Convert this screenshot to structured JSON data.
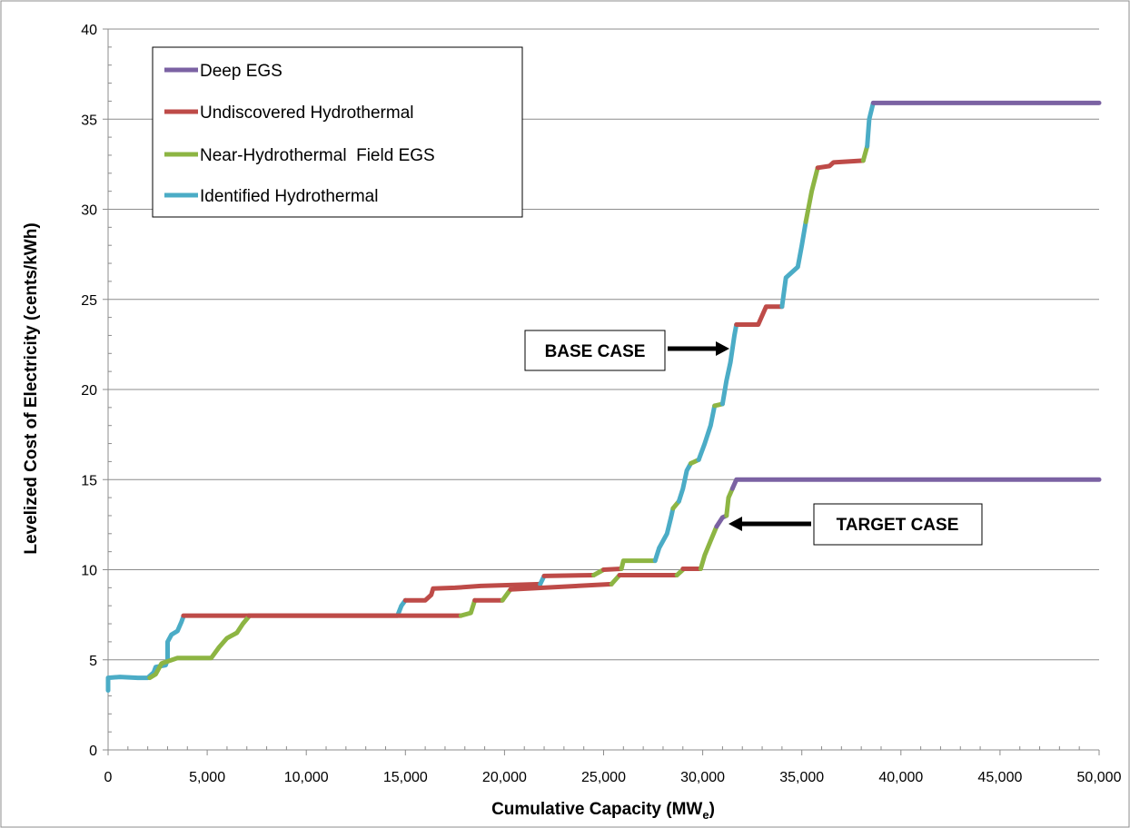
{
  "chart_data": {
    "type": "line",
    "title": "",
    "xlabel": "Cumulative Capacity (MW",
    "xlabel_subscript": "e",
    "xlabel_suffix": ")",
    "ylabel": "Levelized Cost of Electricity (cents/kWh)",
    "xlim": [
      0,
      50000
    ],
    "ylim": [
      0,
      40
    ],
    "x_ticks": [
      0,
      5000,
      10000,
      15000,
      20000,
      25000,
      30000,
      35000,
      40000,
      45000,
      50000
    ],
    "x_tick_labels": [
      "0",
      "5,000",
      "10,000",
      "15,000",
      "20,000",
      "25,000",
      "30,000",
      "35,000",
      "40,000",
      "45,000",
      "50,000"
    ],
    "y_ticks": [
      0,
      5,
      10,
      15,
      20,
      25,
      30,
      35,
      40
    ],
    "y_tick_labels": [
      "0",
      "5",
      "10",
      "15",
      "20",
      "25",
      "30",
      "35",
      "40"
    ],
    "grid": "horizontal major gridlines",
    "legend_position": "top-left",
    "legend": [
      {
        "name": "Deep EGS",
        "color": "#7b62a3"
      },
      {
        "name": "Undiscovered Hydrothermal",
        "color": "#be4b48"
      },
      {
        "name": "Near-Hydrothermal  Field EGS",
        "color": "#8db543"
      },
      {
        "name": "Identified Hydrothermal",
        "color": "#4bacc6"
      }
    ],
    "annotations": [
      {
        "text": "BASE CASE",
        "points_to": [
          31500,
          22.2
        ]
      },
      {
        "text": "TARGET CASE",
        "points_to": [
          30900,
          12.2
        ]
      }
    ],
    "series": [
      {
        "name": "Base case",
        "segments": [
          {
            "color": "#4bacc6",
            "points": [
              [
                0,
                3.3
              ],
              [
                0,
                4.0
              ],
              [
                600,
                4.05
              ],
              [
                1500,
                4.0
              ],
              [
                2000,
                4.0
              ],
              [
                2300,
                4.3
              ],
              [
                2400,
                4.6
              ],
              [
                2900,
                4.7
              ],
              [
                3000,
                5.0
              ],
              [
                3000,
                6.0
              ],
              [
                3200,
                6.4
              ],
              [
                3500,
                6.6
              ],
              [
                3700,
                7.1
              ],
              [
                3800,
                7.4
              ]
            ]
          },
          {
            "color": "#be4b48",
            "points": [
              [
                3800,
                7.45
              ],
              [
                14600,
                7.45
              ]
            ]
          },
          {
            "color": "#4bacc6",
            "points": [
              [
                14600,
                7.45
              ],
              [
                14800,
                8.0
              ],
              [
                15000,
                8.3
              ]
            ]
          },
          {
            "color": "#be4b48",
            "points": [
              [
                15000,
                8.3
              ],
              [
                16000,
                8.3
              ],
              [
                16300,
                8.6
              ],
              [
                16400,
                8.95
              ],
              [
                17500,
                9.0
              ],
              [
                18800,
                9.1
              ],
              [
                21800,
                9.2
              ]
            ]
          },
          {
            "color": "#4bacc6",
            "points": [
              [
                21800,
                9.2
              ],
              [
                22000,
                9.65
              ]
            ]
          },
          {
            "color": "#be4b48",
            "points": [
              [
                22000,
                9.65
              ],
              [
                24500,
                9.7
              ]
            ]
          },
          {
            "color": "#8db543",
            "points": [
              [
                24500,
                9.7
              ],
              [
                25000,
                10.0
              ]
            ]
          },
          {
            "color": "#be4b48",
            "points": [
              [
                25000,
                10.0
              ],
              [
                25900,
                10.05
              ]
            ]
          },
          {
            "color": "#8db543",
            "points": [
              [
                25900,
                10.05
              ],
              [
                26000,
                10.5
              ],
              [
                27600,
                10.5
              ]
            ]
          },
          {
            "color": "#4bacc6",
            "points": [
              [
                27600,
                10.5
              ],
              [
                27800,
                11.2
              ],
              [
                28200,
                12.0
              ],
              [
                28400,
                12.9
              ],
              [
                28500,
                13.4
              ]
            ]
          },
          {
            "color": "#8db543",
            "points": [
              [
                28500,
                13.4
              ],
              [
                28800,
                13.8
              ]
            ]
          },
          {
            "color": "#4bacc6",
            "points": [
              [
                28800,
                13.8
              ],
              [
                29000,
                14.5
              ],
              [
                29200,
                15.5
              ],
              [
                29400,
                15.9
              ]
            ]
          },
          {
            "color": "#8db543",
            "points": [
              [
                29400,
                15.9
              ],
              [
                29800,
                16.1
              ]
            ]
          },
          {
            "color": "#4bacc6",
            "points": [
              [
                29800,
                16.1
              ],
              [
                30100,
                17.0
              ],
              [
                30400,
                18.0
              ],
              [
                30600,
                19.1
              ]
            ]
          },
          {
            "color": "#8db543",
            "points": [
              [
                30600,
                19.1
              ],
              [
                31000,
                19.2
              ]
            ]
          },
          {
            "color": "#4bacc6",
            "points": [
              [
                31000,
                19.2
              ],
              [
                31200,
                20.5
              ],
              [
                31400,
                21.5
              ],
              [
                31600,
                23.0
              ],
              [
                31700,
                23.6
              ]
            ]
          },
          {
            "color": "#be4b48",
            "points": [
              [
                31700,
                23.6
              ],
              [
                32800,
                23.6
              ],
              [
                33200,
                24.6
              ],
              [
                34000,
                24.6
              ]
            ]
          },
          {
            "color": "#4bacc6",
            "points": [
              [
                34000,
                24.6
              ],
              [
                34200,
                26.2
              ],
              [
                34800,
                26.8
              ],
              [
                35000,
                28.0
              ],
              [
                35200,
                29.3
              ]
            ]
          },
          {
            "color": "#8db543",
            "points": [
              [
                35200,
                29.3
              ],
              [
                35500,
                31.0
              ],
              [
                35800,
                32.3
              ]
            ]
          },
          {
            "color": "#be4b48",
            "points": [
              [
                35800,
                32.3
              ],
              [
                36400,
                32.4
              ],
              [
                36600,
                32.6
              ],
              [
                38100,
                32.7
              ]
            ]
          },
          {
            "color": "#8db543",
            "points": [
              [
                38100,
                32.7
              ],
              [
                38300,
                33.5
              ]
            ]
          },
          {
            "color": "#4bacc6",
            "points": [
              [
                38300,
                33.5
              ],
              [
                38400,
                35.0
              ],
              [
                38600,
                35.9
              ]
            ]
          },
          {
            "color": "#7b62a3",
            "points": [
              [
                38600,
                35.9
              ],
              [
                50000,
                35.9
              ]
            ]
          }
        ]
      },
      {
        "name": "Target case",
        "segments": [
          {
            "color": "#8db543",
            "points": [
              [
                2100,
                4.0
              ],
              [
                2400,
                4.2
              ],
              [
                2700,
                4.8
              ],
              [
                3500,
                5.1
              ],
              [
                5200,
                5.1
              ],
              [
                5600,
                5.7
              ],
              [
                6000,
                6.2
              ],
              [
                6500,
                6.5
              ],
              [
                6800,
                7.0
              ],
              [
                7100,
                7.4
              ]
            ]
          },
          {
            "color": "#be4b48",
            "points": [
              [
                7100,
                7.45
              ],
              [
                17800,
                7.45
              ]
            ]
          },
          {
            "color": "#8db543",
            "points": [
              [
                17800,
                7.45
              ],
              [
                18300,
                7.6
              ],
              [
                18500,
                8.3
              ]
            ]
          },
          {
            "color": "#be4b48",
            "points": [
              [
                18500,
                8.3
              ],
              [
                19900,
                8.3
              ]
            ]
          },
          {
            "color": "#8db543",
            "points": [
              [
                19900,
                8.3
              ],
              [
                20300,
                8.9
              ]
            ]
          },
          {
            "color": "#be4b48",
            "points": [
              [
                20300,
                8.9
              ],
              [
                25400,
                9.2
              ]
            ]
          },
          {
            "color": "#8db543",
            "points": [
              [
                25400,
                9.2
              ],
              [
                25800,
                9.7
              ]
            ]
          },
          {
            "color": "#be4b48",
            "points": [
              [
                25800,
                9.7
              ],
              [
                28700,
                9.7
              ]
            ]
          },
          {
            "color": "#8db543",
            "points": [
              [
                28700,
                9.7
              ],
              [
                29000,
                10.0
              ]
            ]
          },
          {
            "color": "#be4b48",
            "points": [
              [
                29000,
                10.05
              ],
              [
                29900,
                10.05
              ]
            ]
          },
          {
            "color": "#8db543",
            "points": [
              [
                29900,
                10.05
              ],
              [
                30100,
                10.8
              ],
              [
                30400,
                11.6
              ],
              [
                30700,
                12.4
              ]
            ]
          },
          {
            "color": "#7b62a3",
            "points": [
              [
                30700,
                12.4
              ],
              [
                31000,
                12.9
              ],
              [
                31200,
                13.0
              ]
            ]
          },
          {
            "color": "#8db543",
            "points": [
              [
                31200,
                13.0
              ],
              [
                31300,
                14.0
              ],
              [
                31500,
                14.5
              ]
            ]
          },
          {
            "color": "#7b62a3",
            "points": [
              [
                31500,
                14.5
              ],
              [
                31700,
                15.0
              ],
              [
                50000,
                15.0
              ]
            ]
          }
        ]
      }
    ]
  }
}
